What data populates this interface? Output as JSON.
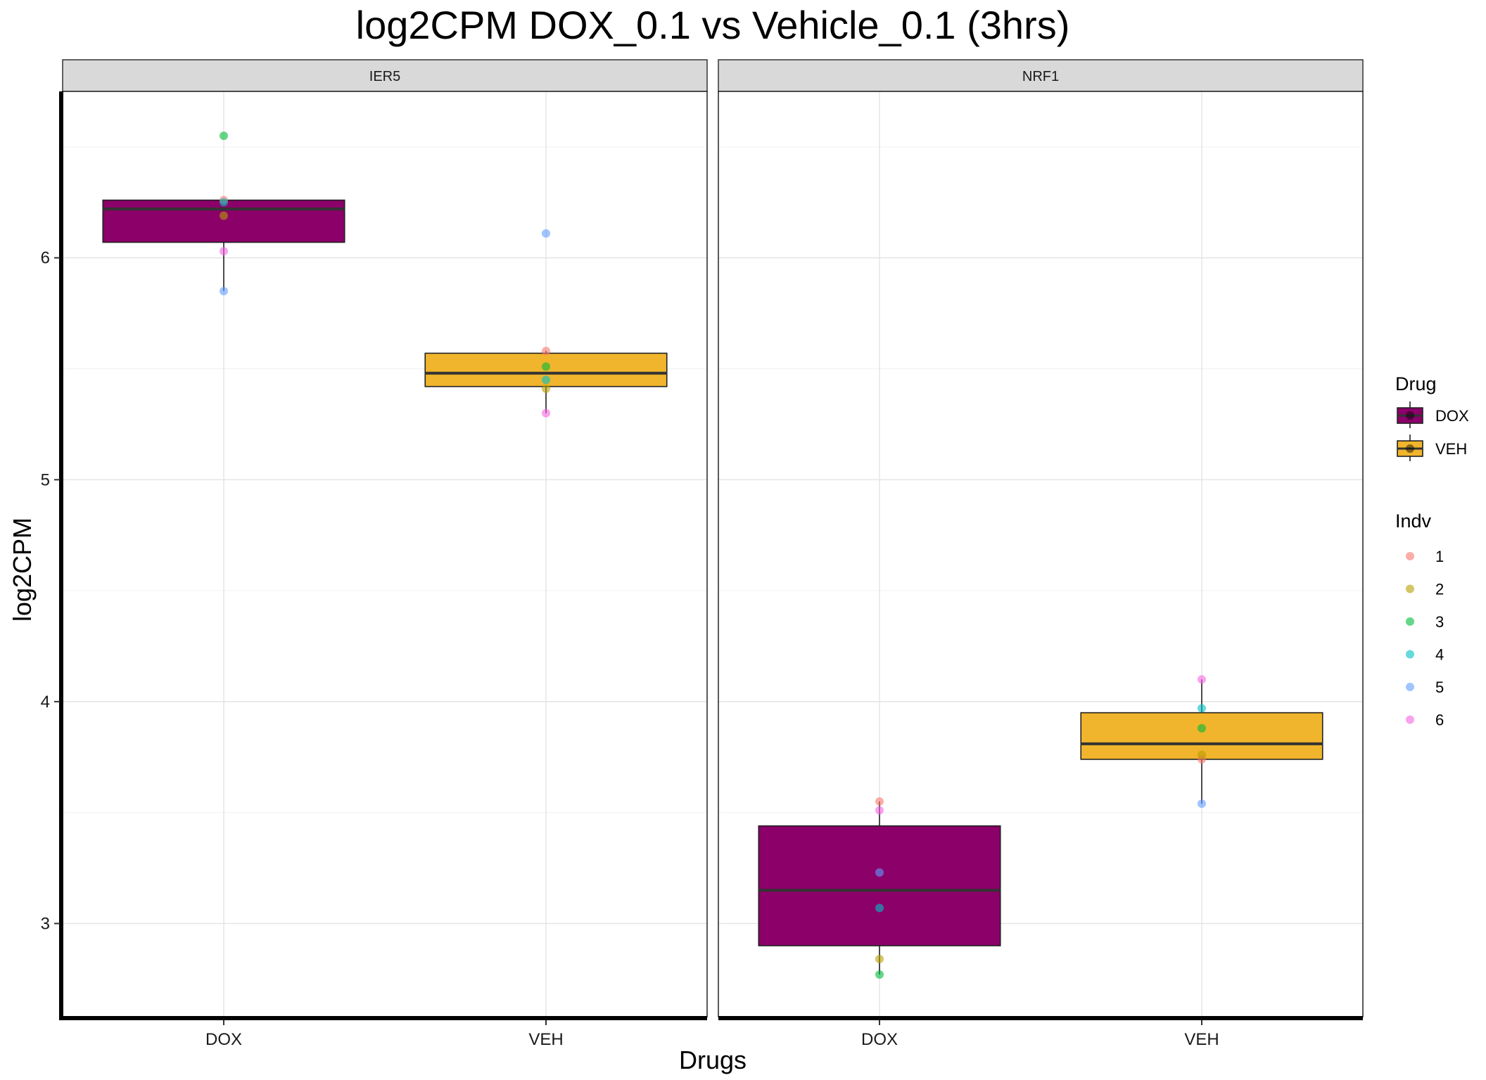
{
  "chart_data": {
    "type": "boxplot",
    "title": "log2CPM DOX_0.1 vs Vehicle_0.1 (3hrs)",
    "xlabel": "Drugs",
    "ylabel": "log2CPM",
    "ylim": [
      2.58,
      6.75
    ],
    "y_ticks": [
      3,
      4,
      5,
      6
    ],
    "y_tick_labels": [
      "3",
      "4",
      "5",
      "6"
    ],
    "y_minor_ticks": [
      3.5,
      4.5,
      5.5,
      6.5
    ],
    "categories": [
      "DOX",
      "VEH"
    ],
    "grid": true,
    "legend_position": "right",
    "drug_colors": {
      "DOX": "#8B0069",
      "VEH": "#F0B52C"
    },
    "indv_colors": {
      "1": "#F8766D",
      "2": "#B79F00",
      "3": "#00BA38",
      "4": "#00BFC4",
      "5": "#619CFF",
      "6": "#F564E3"
    },
    "panels": [
      {
        "name": "IER5",
        "boxes": [
          {
            "drug": "DOX",
            "q1": 6.07,
            "median": 6.22,
            "q3": 6.26,
            "whisker_low": 5.85,
            "whisker_high": 6.26,
            "points": [
              {
                "indv": "1",
                "y": 6.26
              },
              {
                "indv": "2",
                "y": 6.19
              },
              {
                "indv": "3",
                "y": 6.55
              },
              {
                "indv": "4",
                "y": 6.25
              },
              {
                "indv": "5",
                "y": 5.85
              },
              {
                "indv": "6",
                "y": 6.03
              }
            ]
          },
          {
            "drug": "VEH",
            "q1": 5.42,
            "median": 5.48,
            "q3": 5.57,
            "whisker_low": 5.3,
            "whisker_high": 5.58,
            "points": [
              {
                "indv": "1",
                "y": 5.58
              },
              {
                "indv": "2",
                "y": 5.41
              },
              {
                "indv": "3",
                "y": 5.51
              },
              {
                "indv": "4",
                "y": 5.45
              },
              {
                "indv": "5",
                "y": 6.11
              },
              {
                "indv": "6",
                "y": 5.3
              }
            ]
          }
        ]
      },
      {
        "name": "NRF1",
        "boxes": [
          {
            "drug": "DOX",
            "q1": 2.9,
            "median": 3.15,
            "q3": 3.44,
            "whisker_low": 2.77,
            "whisker_high": 3.55,
            "points": [
              {
                "indv": "1",
                "y": 3.55
              },
              {
                "indv": "2",
                "y": 2.84
              },
              {
                "indv": "3",
                "y": 2.77
              },
              {
                "indv": "4",
                "y": 3.07
              },
              {
                "indv": "5",
                "y": 3.23
              },
              {
                "indv": "6",
                "y": 3.51
              }
            ]
          },
          {
            "drug": "VEH",
            "q1": 3.74,
            "median": 3.81,
            "q3": 3.95,
            "whisker_low": 3.54,
            "whisker_high": 4.1,
            "points": [
              {
                "indv": "1",
                "y": 3.74
              },
              {
                "indv": "2",
                "y": 3.76
              },
              {
                "indv": "3",
                "y": 3.88
              },
              {
                "indv": "4",
                "y": 3.97
              },
              {
                "indv": "5",
                "y": 3.54
              },
              {
                "indv": "6",
                "y": 4.1
              }
            ]
          }
        ]
      }
    ],
    "legends": [
      {
        "title": "Drug",
        "items": [
          "DOX",
          "VEH"
        ]
      },
      {
        "title": "Indv",
        "items": [
          "1",
          "2",
          "3",
          "4",
          "5",
          "6"
        ]
      }
    ]
  }
}
